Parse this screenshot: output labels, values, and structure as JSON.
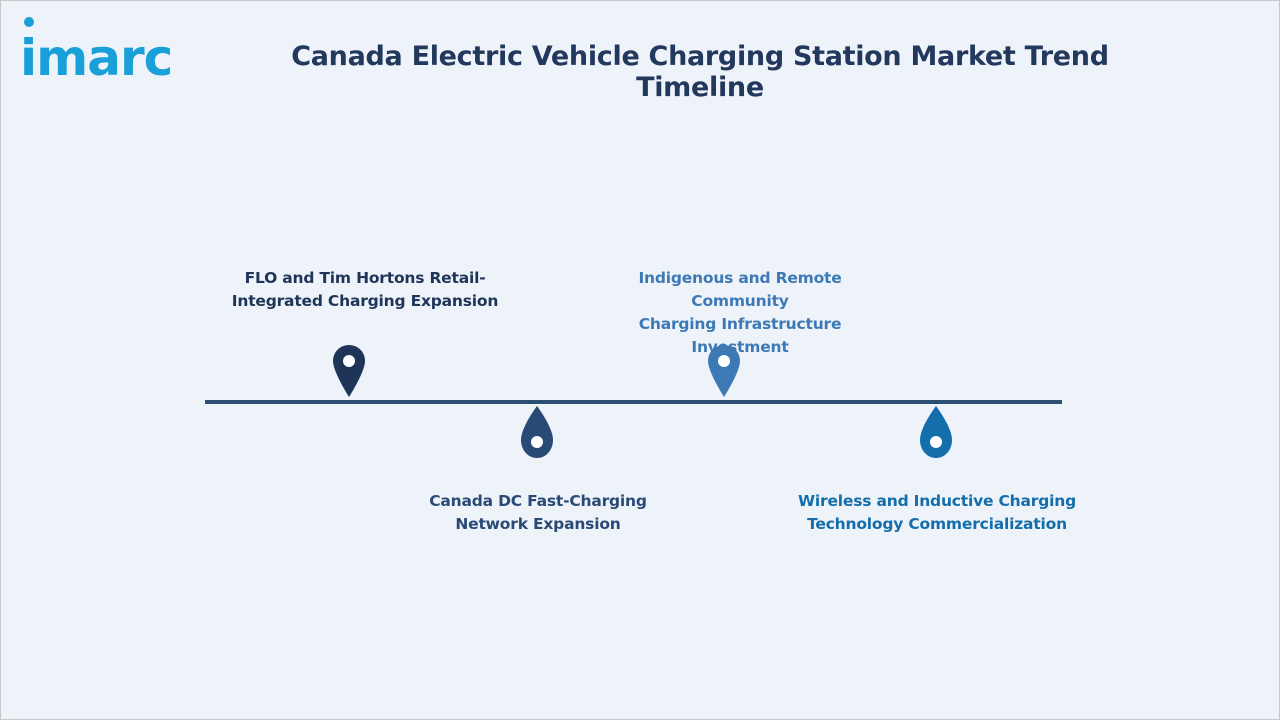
{
  "brand": {
    "logo_text": "imarc",
    "logo_color": "#1aa0d8"
  },
  "title": "Canada Electric Vehicle Charging Station Market Trend Timeline",
  "timeline": {
    "axis_color": "#2b4f72",
    "events": [
      {
        "label_line1": "FLO and Tim Hortons Retail-",
        "label_line2": "Integrated Charging Expansion",
        "position": "above",
        "color": "#1f3558"
      },
      {
        "label_line1": "Indigenous and Remote Community",
        "label_line2": "Charging Infrastructure Investment",
        "position": "above",
        "color": "#3d7ab5"
      },
      {
        "label_line1": "Canada DC Fast-Charging",
        "label_line2": "Network Expansion",
        "position": "below",
        "color": "#2a4a76"
      },
      {
        "label_line1": "Wireless and Inductive Charging",
        "label_line2": "Technology Commercialization",
        "position": "below",
        "color": "#146eab"
      }
    ]
  }
}
